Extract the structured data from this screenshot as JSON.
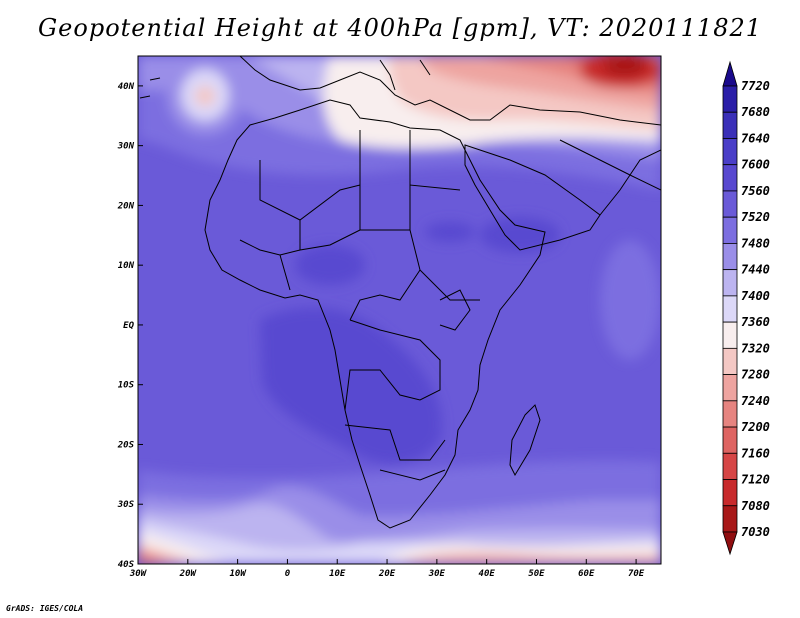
{
  "title": "Geopotential Height at 400hPa [gpm], VT: 2020111821",
  "credit": "GrADS: IGES/COLA",
  "map": {
    "lon_labels": [
      "30W",
      "20W",
      "10W",
      "0",
      "10E",
      "20E",
      "30E",
      "40E",
      "50E",
      "60E",
      "70E"
    ],
    "lat_labels": [
      "40N",
      "30N",
      "20N",
      "10N",
      "EQ",
      "10S",
      "20S",
      "30S",
      "40S"
    ],
    "lon_range": [
      -30,
      75
    ],
    "lat_range": [
      -40,
      45
    ]
  },
  "colorbar": {
    "levels": [
      "7720",
      "7680",
      "7640",
      "7600",
      "7560",
      "7520",
      "7480",
      "7440",
      "7400",
      "7360",
      "7320",
      "7280",
      "7240",
      "7200",
      "7160",
      "7120",
      "7080",
      "7030"
    ],
    "colors": [
      "#1a0a8c",
      "#2a1ea8",
      "#3a2fb8",
      "#4a3ec8",
      "#5848d0",
      "#6a5ad8",
      "#7c6ee0",
      "#9a8ee8",
      "#bcb4f0",
      "#dcd8f8",
      "#f8eeee",
      "#f4c8c4",
      "#eea4a0",
      "#e68480",
      "#de6462",
      "#d64646",
      "#c82a2c",
      "#a81818",
      "#900e10"
    ]
  }
}
